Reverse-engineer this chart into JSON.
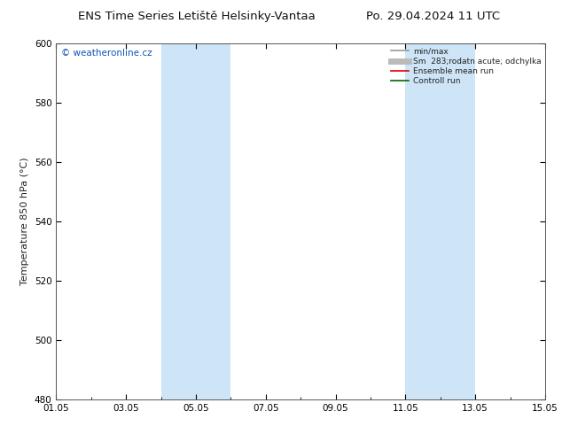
{
  "title_left": "ENS Time Series Letiště Helsinky-Vantaa",
  "title_right": "Po. 29.04.2024 11 UTC",
  "ylabel": "Temperature 850 hPa (°C)",
  "watermark": "© weatheronline.cz",
  "ylim": [
    480,
    600
  ],
  "yticks": [
    480,
    500,
    520,
    540,
    560,
    580,
    600
  ],
  "xlim": [
    0,
    14
  ],
  "xtick_labels": [
    "01.05",
    "03.05",
    "05.05",
    "07.05",
    "09.05",
    "11.05",
    "13.05",
    "15.05"
  ],
  "xtick_positions_days": [
    0,
    2,
    4,
    6,
    8,
    10,
    12,
    14
  ],
  "shaded_regions": [
    {
      "start_day": 3.0,
      "end_day": 5.0
    },
    {
      "start_day": 10.0,
      "end_day": 12.0
    }
  ],
  "shaded_color": "#cde5f7",
  "background_color": "#ffffff",
  "plot_bg_color": "#ffffff",
  "legend_entries": [
    {
      "label": "min/max",
      "color": "#999999",
      "lw": 1.2,
      "style": "solid"
    },
    {
      "label": "Sm  283;rodatn acute; odchylka",
      "color": "#bbbbbb",
      "lw": 5,
      "style": "solid"
    },
    {
      "label": "Ensemble mean run",
      "color": "#dd0000",
      "lw": 1.2,
      "style": "solid"
    },
    {
      "label": "Controll run",
      "color": "#006600",
      "lw": 1.2,
      "style": "solid"
    }
  ],
  "tick_fontsize": 7.5,
  "label_fontsize": 8,
  "title_fontsize": 9.5,
  "watermark_fontsize": 7.5,
  "watermark_color": "#1155bb",
  "spine_color": "#555555",
  "figsize": [
    6.34,
    4.9
  ],
  "dpi": 100
}
